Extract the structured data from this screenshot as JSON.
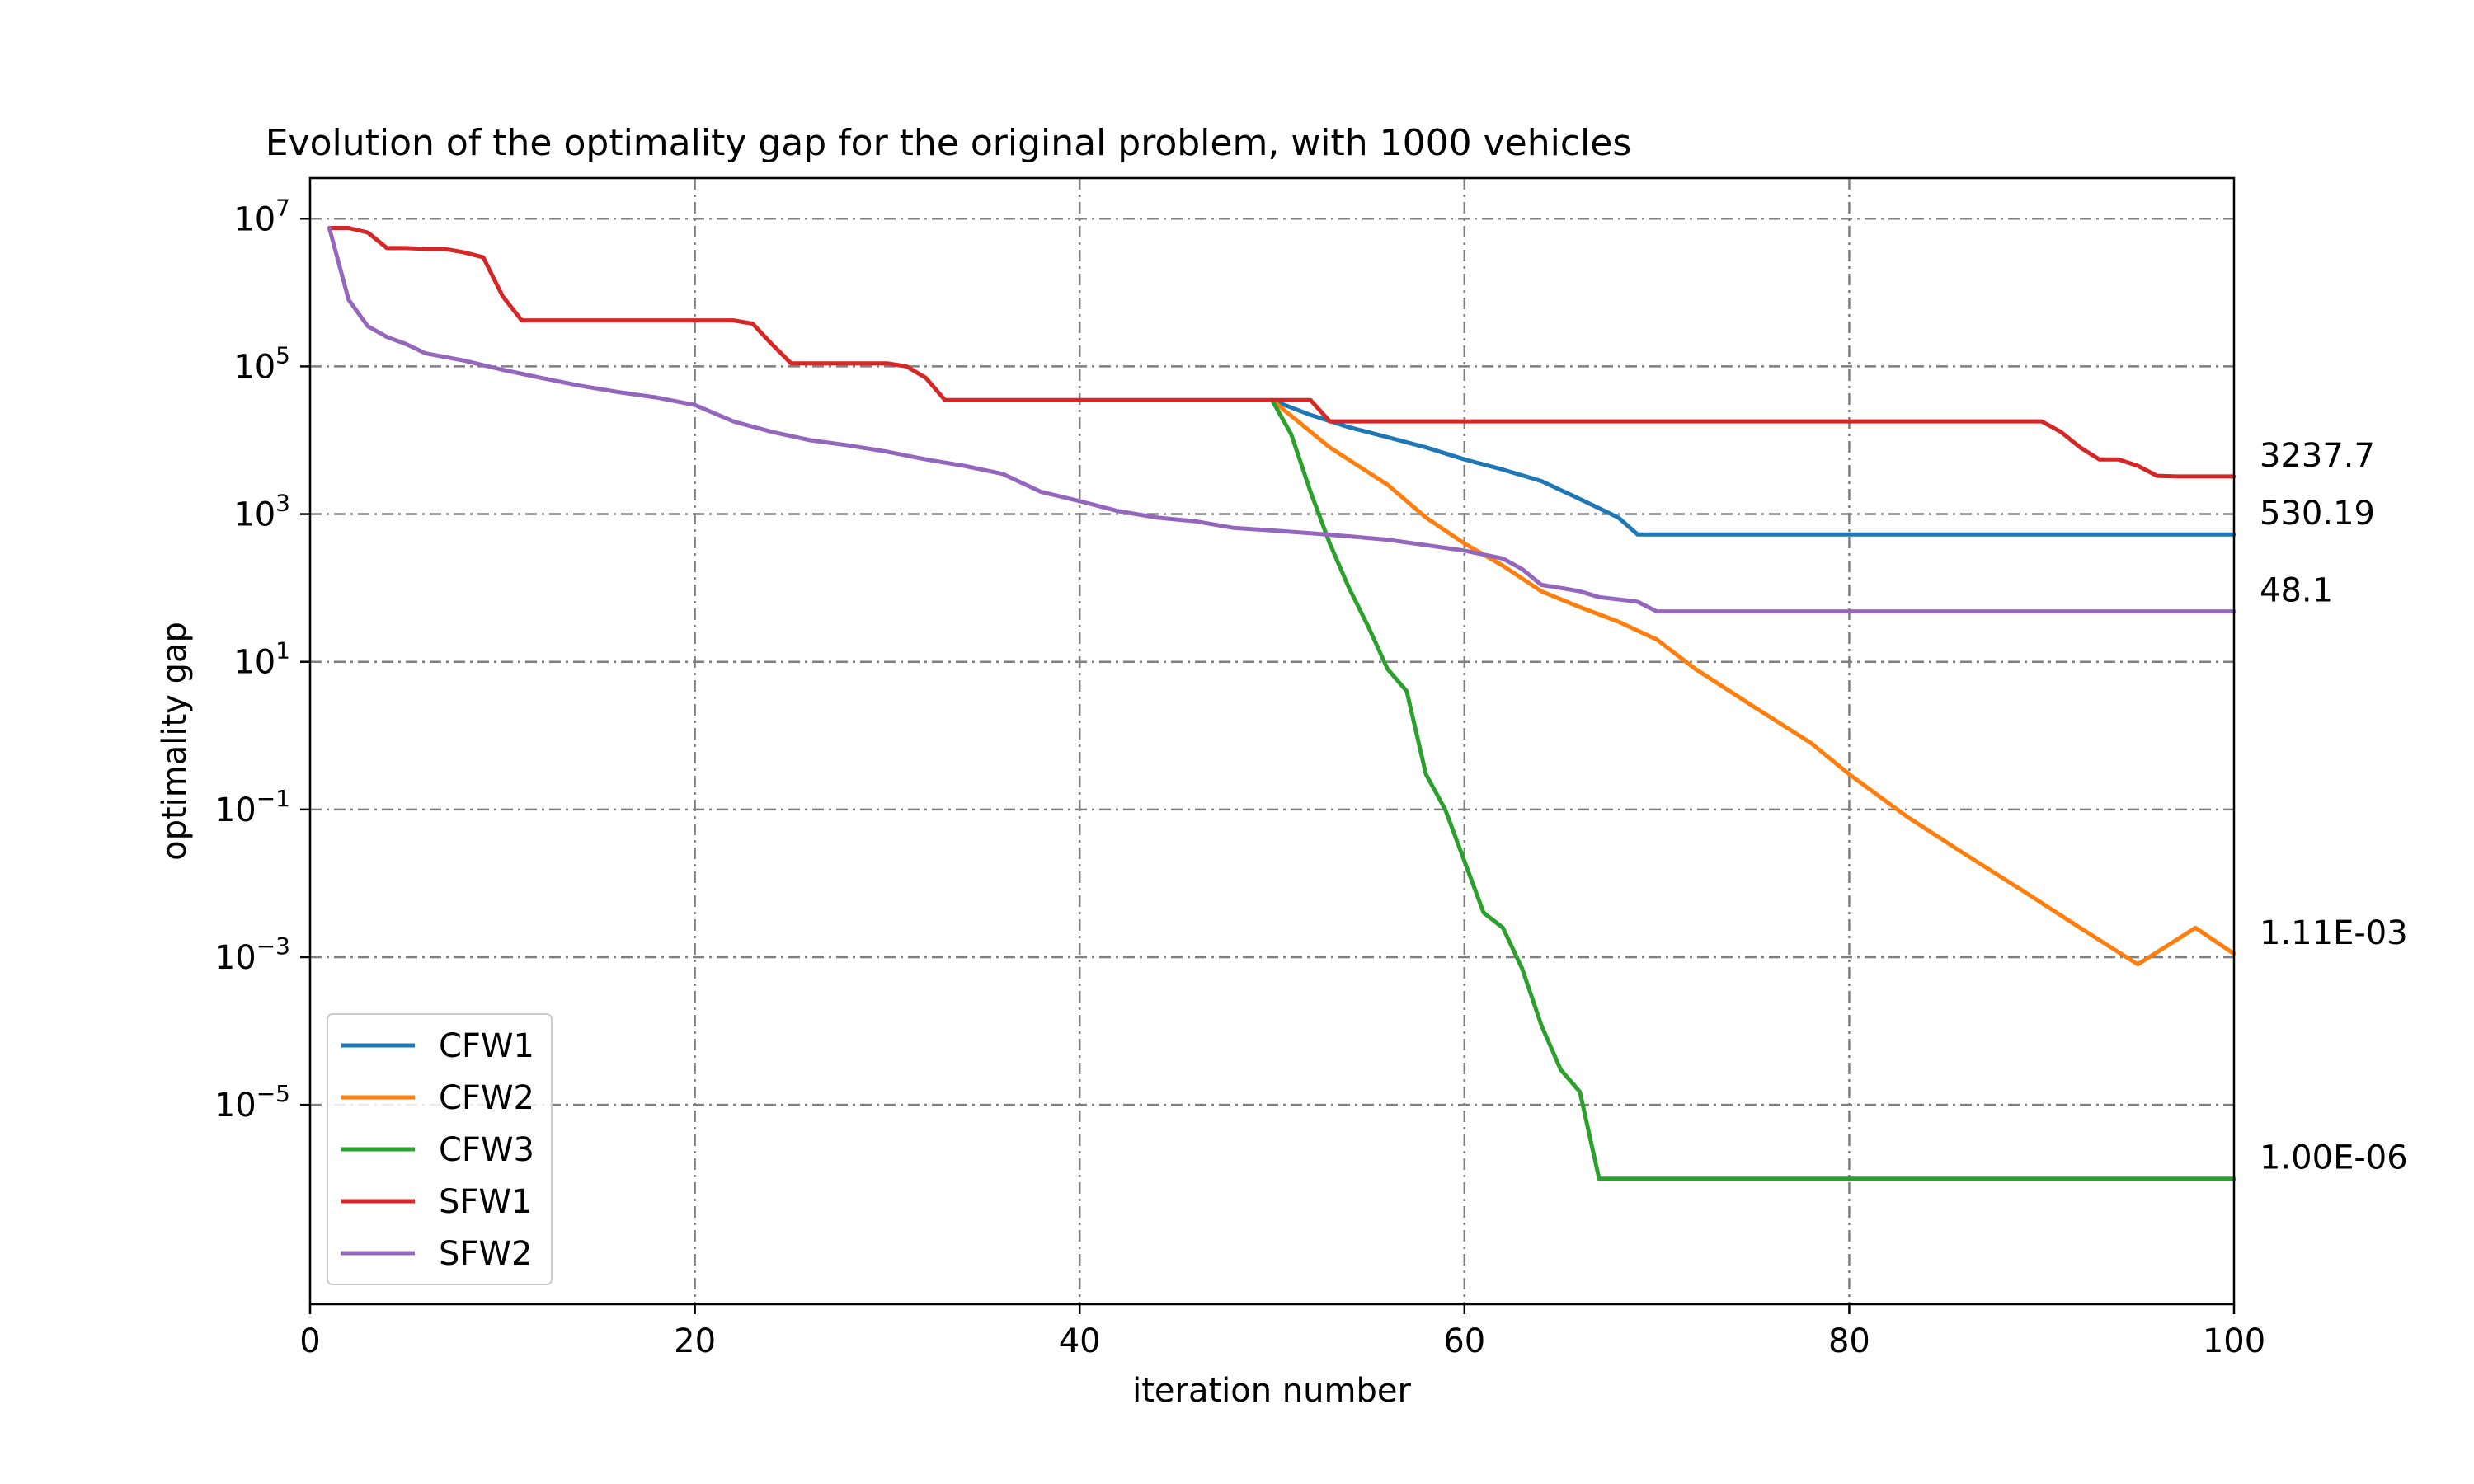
{
  "chart_data": {
    "type": "line",
    "title": "Evolution of the optimality gap for the original problem, with 1000 vehicles",
    "xlabel": "iteration number",
    "ylabel": "optimality gap",
    "xlim": [
      0,
      100
    ],
    "ylim_log10": [
      -7.7,
      7.55
    ],
    "yscale": "log",
    "grid": true,
    "grid_style": "dashdot gray",
    "legend_position": "lower-left",
    "x_ticks": [
      0,
      20,
      40,
      60,
      80,
      100
    ],
    "x_tick_labels": [
      "0",
      "20",
      "40",
      "60",
      "80",
      "100"
    ],
    "y_ticks": [
      {
        "exp": 7,
        "mantissa": "10",
        "label": "7"
      },
      {
        "exp": 5,
        "mantissa": "10",
        "label": "5"
      },
      {
        "exp": 3,
        "mantissa": "10",
        "label": "3"
      },
      {
        "exp": 1,
        "mantissa": "10",
        "label": "1"
      },
      {
        "exp": -1,
        "mantissa": "10",
        "label": "−1"
      },
      {
        "exp": -3,
        "mantissa": "10",
        "label": "−3"
      },
      {
        "exp": -5,
        "mantissa": "10",
        "label": "−5"
      }
    ],
    "series": [
      {
        "name": "CFW1",
        "color": "#1f77b4",
        "x": [
          50,
          52,
          54,
          56,
          58,
          60,
          62,
          64,
          66,
          68,
          69,
          70,
          80,
          90,
          100
        ],
        "y": [
          35000,
          22000,
          15000,
          11000,
          8000,
          5500,
          4000,
          2800,
          1600,
          900,
          530,
          530.19,
          530.19,
          530.19,
          530.19
        ],
        "end_label": "530.19"
      },
      {
        "name": "CFW2",
        "color": "#ff7f0e",
        "x": [
          50,
          53,
          56,
          58,
          60,
          62,
          64,
          66,
          68,
          70,
          72,
          75,
          78,
          80,
          83,
          86,
          89,
          92,
          95,
          98,
          100
        ],
        "y": [
          35000,
          8000,
          2500,
          900,
          400,
          200,
          90,
          55,
          35,
          20,
          8,
          2.5,
          0.8,
          0.3,
          0.08,
          0.025,
          0.008,
          0.0025,
          0.0008,
          0.0025,
          0.00111
        ],
        "end_label": "1.11E-03"
      },
      {
        "name": "CFW3",
        "color": "#2ca02c",
        "x": [
          50,
          51,
          52,
          53,
          54,
          55,
          56,
          57,
          58,
          59,
          60,
          61,
          62,
          63,
          64,
          65,
          66,
          67,
          70,
          80,
          90,
          100
        ],
        "y": [
          35000,
          12000,
          2000,
          400,
          100,
          30,
          8,
          4,
          0.3,
          0.1,
          0.02,
          0.004,
          0.0025,
          0.0007,
          0.00012,
          3e-05,
          1.5e-05,
          1e-06,
          1e-06,
          1e-06,
          1e-06,
          1e-06
        ],
        "end_label": "1.00E-06"
      },
      {
        "name": "SFW1",
        "color": "#d62728",
        "x": [
          1,
          2,
          3,
          4,
          5,
          6,
          7,
          8,
          9,
          10,
          11,
          12,
          20,
          22,
          23,
          24,
          25,
          30,
          31,
          32,
          33,
          40,
          50,
          52,
          53,
          60,
          70,
          80,
          90,
          91,
          92,
          93,
          94,
          95,
          96,
          97,
          100
        ],
        "y": [
          7500000,
          7500000,
          6500000,
          4000000,
          4000000,
          3900000,
          3900000,
          3500000,
          3000000,
          900000,
          420000,
          420000,
          420000,
          420000,
          380000,
          200000,
          110000,
          110000,
          100000,
          70000,
          35000,
          35000,
          35000,
          35000,
          18000,
          18000,
          18000,
          18000,
          18000,
          13000,
          8000,
          5500,
          5500,
          4500,
          3300,
          3237.7,
          3237.7
        ],
        "end_label": "3237.7"
      },
      {
        "name": "SFW2",
        "color": "#9467bd",
        "x": [
          1,
          2,
          3,
          4,
          5,
          6,
          8,
          10,
          12,
          14,
          16,
          18,
          20,
          22,
          24,
          26,
          28,
          30,
          32,
          34,
          36,
          38,
          40,
          42,
          44,
          46,
          48,
          50,
          52,
          54,
          56,
          58,
          60,
          62,
          63,
          64,
          65,
          66,
          67,
          68,
          69,
          70,
          80,
          90,
          100
        ],
        "y": [
          7500000,
          800000,
          350000,
          250000,
          200000,
          150000,
          120000,
          90000,
          70000,
          55000,
          45000,
          38000,
          30000,
          18000,
          13000,
          10000,
          8500,
          7000,
          5500,
          4500,
          3500,
          2000,
          1500,
          1100,
          900,
          800,
          650,
          600,
          550,
          500,
          450,
          380,
          320,
          250,
          180,
          110,
          100,
          90,
          75,
          70,
          65,
          48.1,
          48.1,
          48.1,
          48.1
        ],
        "end_label": "48.1"
      }
    ]
  }
}
